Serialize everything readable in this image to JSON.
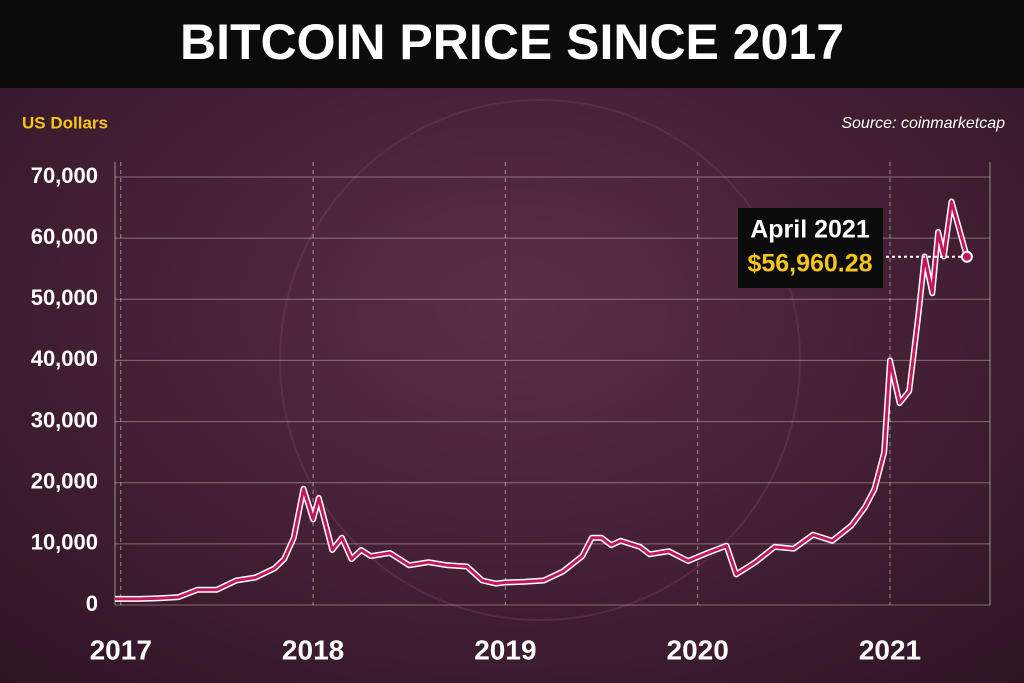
{
  "chart_data": {
    "type": "line",
    "title": "BITCOIN PRICE SINCE 2017",
    "y_label": "US Dollars",
    "source": "Source: coinmarketcap",
    "annotation": {
      "title": "April 2021",
      "text": "$56,960.28"
    },
    "color": "#c2185b",
    "x": [
      2016.97,
      2017.1,
      2017.2,
      2017.3,
      2017.4,
      2017.5,
      2017.6,
      2017.7,
      2017.8,
      2017.85,
      2017.9,
      2017.95,
      2018.0,
      2018.03,
      2018.1,
      2018.15,
      2018.2,
      2018.25,
      2018.3,
      2018.4,
      2018.5,
      2018.6,
      2018.7,
      2018.8,
      2018.88,
      2018.95,
      2019.0,
      2019.1,
      2019.2,
      2019.3,
      2019.4,
      2019.45,
      2019.5,
      2019.55,
      2019.6,
      2019.7,
      2019.75,
      2019.85,
      2019.95,
      2020.05,
      2020.15,
      2020.2,
      2020.3,
      2020.4,
      2020.5,
      2020.6,
      2020.7,
      2020.8,
      2020.87,
      2020.92,
      2020.97,
      2021.0,
      2021.05,
      2021.1,
      2021.15,
      2021.18,
      2021.22,
      2021.25,
      2021.28,
      2021.32,
      2021.4
    ],
    "values": [
      1000,
      1000,
      1100,
      1300,
      2500,
      2500,
      4000,
      4500,
      6000,
      7500,
      11000,
      19000,
      14000,
      17500,
      9000,
      11000,
      7500,
      9000,
      8000,
      8500,
      6500,
      7000,
      6500,
      6300,
      4000,
      3500,
      3700,
      3800,
      4000,
      5500,
      8000,
      11000,
      11000,
      9800,
      10500,
      9500,
      8300,
      8800,
      7200,
      8500,
      9700,
      5000,
      7000,
      9500,
      9200,
      11500,
      10500,
      13000,
      16000,
      19000,
      25000,
      40000,
      33000,
      35000,
      48000,
      57000,
      51000,
      61000,
      57000,
      66000,
      56960.28
    ],
    "xlim": [
      2016.97,
      2021.52
    ],
    "xticks": [
      2017,
      2018,
      2019,
      2020,
      2021
    ],
    "ylim": [
      0,
      70000
    ],
    "yticks": [
      0,
      {
        "value": 10000,
        "label": "10,000"
      },
      {
        "value": 20000,
        "label": "20,000"
      },
      {
        "value": 30000,
        "label": "30,000"
      },
      {
        "value": 40000,
        "label": "40,000"
      },
      {
        "value": 50000,
        "label": "50,000"
      },
      {
        "value": 60000,
        "label": "60,000"
      },
      {
        "value": 70000,
        "label": "70,000"
      }
    ],
    "grid": true
  }
}
